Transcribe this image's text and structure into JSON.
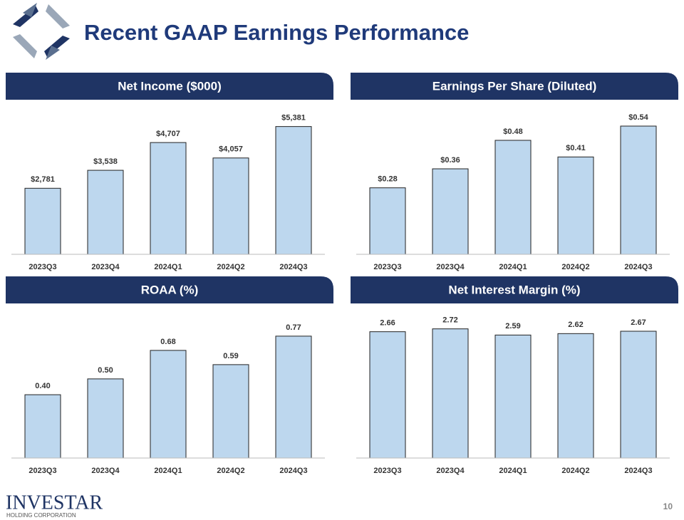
{
  "page": {
    "title": "Recent GAAP Earnings Performance",
    "company": "INVESTAR",
    "company_sub": "HOLDING CORPORATION",
    "page_number": "10"
  },
  "chart_data": [
    {
      "type": "bar",
      "title": "Net Income ($000)",
      "categories": [
        "2023Q3",
        "2023Q4",
        "2024Q1",
        "2024Q2",
        "2024Q3"
      ],
      "values": [
        2781,
        3538,
        4707,
        4057,
        5381
      ],
      "value_labels": [
        "$2,781",
        "$3,538",
        "$4,707",
        "$4,057",
        "$5,381"
      ],
      "color": "#bdd7ee",
      "ylim": [
        0,
        6000
      ]
    },
    {
      "type": "bar",
      "title": "Earnings Per Share (Diluted)",
      "categories": [
        "2023Q3",
        "2023Q4",
        "2024Q1",
        "2024Q2",
        "2024Q3"
      ],
      "values": [
        0.28,
        0.36,
        0.48,
        0.41,
        0.54
      ],
      "value_labels": [
        "$0.28",
        "$0.36",
        "$0.48",
        "$0.41",
        "$0.54"
      ],
      "color": "#bdd7ee",
      "ylim": [
        0,
        0.6
      ]
    },
    {
      "type": "bar",
      "title": "ROAA (%)",
      "categories": [
        "2023Q3",
        "2023Q4",
        "2024Q1",
        "2024Q2",
        "2024Q3"
      ],
      "values": [
        0.4,
        0.5,
        0.68,
        0.59,
        0.77
      ],
      "value_labels": [
        "0.40",
        "0.50",
        "0.68",
        "0.59",
        "0.77"
      ],
      "color": "#bdd7ee",
      "ylim": [
        0,
        0.9
      ]
    },
    {
      "type": "bar",
      "title": "Net Interest Margin (%)",
      "categories": [
        "2023Q3",
        "2023Q4",
        "2024Q1",
        "2024Q2",
        "2024Q3"
      ],
      "values": [
        2.66,
        2.72,
        2.59,
        2.62,
        2.67
      ],
      "color": "#bdd7ee",
      "ylim": [
        0,
        3
      ]
    }
  ]
}
